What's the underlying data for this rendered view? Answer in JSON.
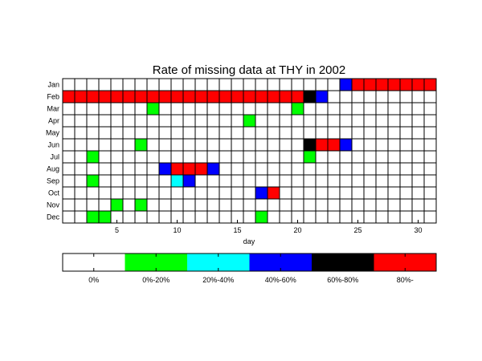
{
  "chart_data": {
    "type": "heatmap",
    "title": "Rate of missing data at THY in 2002",
    "xlabel": "day",
    "ylabel": "",
    "x_range": [
      1,
      31
    ],
    "x_ticks": [
      5,
      10,
      15,
      20,
      25,
      30
    ],
    "rows": [
      "Jan",
      "Feb",
      "Mar",
      "Apr",
      "May",
      "Jun",
      "Jul",
      "Aug",
      "Sep",
      "Oct",
      "Nov",
      "Dec"
    ],
    "grid": true,
    "categories_legend": [
      {
        "label": "0%",
        "color": "#ffffff"
      },
      {
        "label": "0%-20%",
        "color": "#00ff00"
      },
      {
        "label": "20%-40%",
        "color": "#00ffff"
      },
      {
        "label": "40%-60%",
        "color": "#0000ff"
      },
      {
        "label": "60%-80%",
        "color": "#000000"
      },
      {
        "label": "80%-",
        "color": "#ff0000"
      }
    ],
    "legend_placement": "bottom",
    "values": [
      [
        0,
        0,
        0,
        0,
        0,
        0,
        0,
        0,
        0,
        0,
        0,
        0,
        0,
        0,
        0,
        0,
        0,
        0,
        0,
        0,
        0,
        0,
        0,
        3,
        5,
        5,
        5,
        5,
        5,
        5,
        5
      ],
      [
        5,
        5,
        5,
        5,
        5,
        5,
        5,
        5,
        5,
        5,
        5,
        5,
        5,
        5,
        5,
        5,
        5,
        5,
        5,
        5,
        4,
        3,
        0,
        0,
        0,
        0,
        0,
        0,
        0,
        0,
        0
      ],
      [
        0,
        0,
        0,
        0,
        0,
        0,
        0,
        1,
        0,
        0,
        0,
        0,
        0,
        0,
        0,
        0,
        0,
        0,
        0,
        1,
        0,
        0,
        0,
        0,
        0,
        0,
        0,
        0,
        0,
        0,
        0
      ],
      [
        0,
        0,
        0,
        0,
        0,
        0,
        0,
        0,
        0,
        0,
        0,
        0,
        0,
        0,
        0,
        1,
        0,
        0,
        0,
        0,
        0,
        0,
        0,
        0,
        0,
        0,
        0,
        0,
        0,
        0,
        0
      ],
      [
        0,
        0,
        0,
        0,
        0,
        0,
        0,
        0,
        0,
        0,
        0,
        0,
        0,
        0,
        0,
        0,
        0,
        0,
        0,
        0,
        0,
        0,
        0,
        0,
        0,
        0,
        0,
        0,
        0,
        0,
        0
      ],
      [
        0,
        0,
        0,
        0,
        0,
        0,
        1,
        0,
        0,
        0,
        0,
        0,
        0,
        0,
        0,
        0,
        0,
        0,
        0,
        0,
        4,
        5,
        5,
        3,
        0,
        0,
        0,
        0,
        0,
        0,
        0
      ],
      [
        0,
        0,
        1,
        0,
        0,
        0,
        0,
        0,
        0,
        0,
        0,
        0,
        0,
        0,
        0,
        0,
        0,
        0,
        0,
        0,
        1,
        0,
        0,
        0,
        0,
        0,
        0,
        0,
        0,
        0,
        0
      ],
      [
        0,
        0,
        0,
        0,
        0,
        0,
        0,
        0,
        3,
        5,
        5,
        5,
        3,
        0,
        0,
        0,
        0,
        0,
        0,
        0,
        0,
        0,
        0,
        0,
        0,
        0,
        0,
        0,
        0,
        0,
        0
      ],
      [
        0,
        0,
        1,
        0,
        0,
        0,
        0,
        0,
        0,
        2,
        3,
        0,
        0,
        0,
        0,
        0,
        0,
        0,
        0,
        0,
        0,
        0,
        0,
        0,
        0,
        0,
        0,
        0,
        0,
        0,
        0
      ],
      [
        0,
        0,
        0,
        0,
        0,
        0,
        0,
        0,
        0,
        0,
        0,
        0,
        0,
        0,
        0,
        0,
        3,
        5,
        0,
        0,
        0,
        0,
        0,
        0,
        0,
        0,
        0,
        0,
        0,
        0,
        0
      ],
      [
        0,
        0,
        0,
        0,
        1,
        0,
        1,
        0,
        0,
        0,
        0,
        0,
        0,
        0,
        0,
        0,
        0,
        0,
        0,
        0,
        0,
        0,
        0,
        0,
        0,
        0,
        0,
        0,
        0,
        0,
        0
      ],
      [
        0,
        0,
        1,
        1,
        0,
        0,
        0,
        0,
        0,
        0,
        0,
        0,
        0,
        0,
        0,
        0,
        1,
        0,
        0,
        0,
        0,
        0,
        0,
        0,
        0,
        0,
        0,
        0,
        0,
        0,
        0
      ]
    ]
  }
}
